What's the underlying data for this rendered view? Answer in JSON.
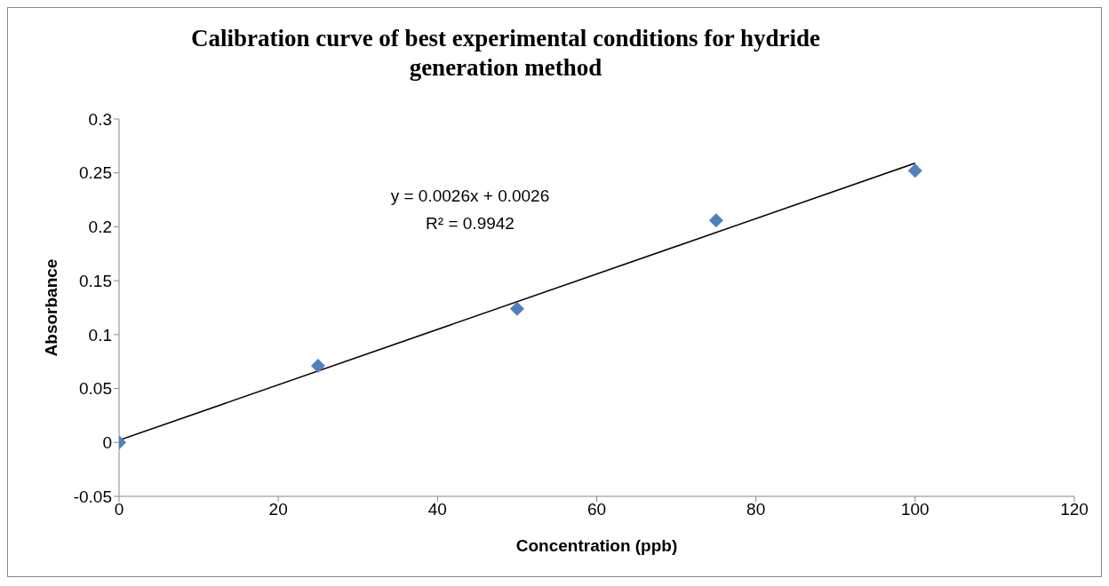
{
  "chart_data": {
    "type": "scatter",
    "title": "Calibration curve of best experimental conditions for hydride generation method",
    "xlabel": "Concentration (ppb)",
    "ylabel": "Absorbance",
    "x": [
      0,
      25,
      50,
      75,
      100
    ],
    "series": [
      {
        "color": "#4f81bd",
        "values": [
          0,
          0.071,
          0.124,
          0.206,
          0.252
        ],
        "marker": "diamond"
      },
      {
        "type": "line",
        "color": "#000000",
        "x": [
          0,
          100
        ],
        "values": [
          0.002,
          0.259
        ],
        "marker": "none",
        "line_style": "solid"
      }
    ],
    "xlim": [
      0,
      120
    ],
    "xticks": [
      0,
      20,
      40,
      60,
      80,
      100,
      120
    ],
    "ylim": [
      -0.05,
      0.3
    ],
    "yticks": [
      -0.05,
      0,
      0.05,
      0.1,
      0.15,
      0.2,
      0.25,
      0.3
    ],
    "grid": false,
    "annotations": [
      "y = 0.0026x + 0.0026",
      "R² = 0.9942"
    ]
  }
}
